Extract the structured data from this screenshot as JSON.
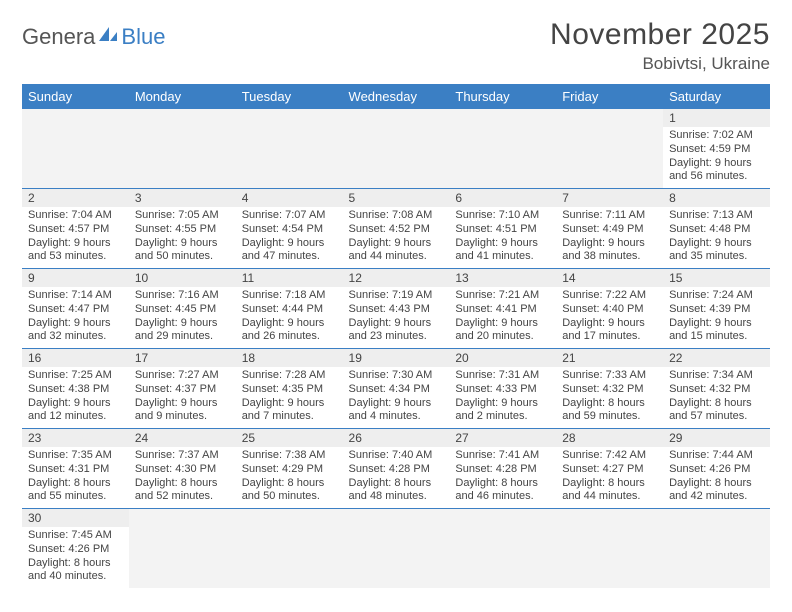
{
  "logo": {
    "part1": "Genera",
    "part2": "Blue"
  },
  "title": "November 2025",
  "location": "Bobivtsi, Ukraine",
  "colors": {
    "header_bg": "#3b7fc4",
    "header_text": "#ffffff",
    "daynum_bg": "#eeeeee",
    "row_border": "#3b7fc4",
    "body_text": "#444444"
  },
  "weekdays": [
    "Sunday",
    "Monday",
    "Tuesday",
    "Wednesday",
    "Thursday",
    "Friday",
    "Saturday"
  ],
  "weeks": [
    [
      null,
      null,
      null,
      null,
      null,
      null,
      {
        "n": "1",
        "sr": "Sunrise: 7:02 AM",
        "ss": "Sunset: 4:59 PM",
        "dl": "Daylight: 9 hours and 56 minutes."
      }
    ],
    [
      {
        "n": "2",
        "sr": "Sunrise: 7:04 AM",
        "ss": "Sunset: 4:57 PM",
        "dl": "Daylight: 9 hours and 53 minutes."
      },
      {
        "n": "3",
        "sr": "Sunrise: 7:05 AM",
        "ss": "Sunset: 4:55 PM",
        "dl": "Daylight: 9 hours and 50 minutes."
      },
      {
        "n": "4",
        "sr": "Sunrise: 7:07 AM",
        "ss": "Sunset: 4:54 PM",
        "dl": "Daylight: 9 hours and 47 minutes."
      },
      {
        "n": "5",
        "sr": "Sunrise: 7:08 AM",
        "ss": "Sunset: 4:52 PM",
        "dl": "Daylight: 9 hours and 44 minutes."
      },
      {
        "n": "6",
        "sr": "Sunrise: 7:10 AM",
        "ss": "Sunset: 4:51 PM",
        "dl": "Daylight: 9 hours and 41 minutes."
      },
      {
        "n": "7",
        "sr": "Sunrise: 7:11 AM",
        "ss": "Sunset: 4:49 PM",
        "dl": "Daylight: 9 hours and 38 minutes."
      },
      {
        "n": "8",
        "sr": "Sunrise: 7:13 AM",
        "ss": "Sunset: 4:48 PM",
        "dl": "Daylight: 9 hours and 35 minutes."
      }
    ],
    [
      {
        "n": "9",
        "sr": "Sunrise: 7:14 AM",
        "ss": "Sunset: 4:47 PM",
        "dl": "Daylight: 9 hours and 32 minutes."
      },
      {
        "n": "10",
        "sr": "Sunrise: 7:16 AM",
        "ss": "Sunset: 4:45 PM",
        "dl": "Daylight: 9 hours and 29 minutes."
      },
      {
        "n": "11",
        "sr": "Sunrise: 7:18 AM",
        "ss": "Sunset: 4:44 PM",
        "dl": "Daylight: 9 hours and 26 minutes."
      },
      {
        "n": "12",
        "sr": "Sunrise: 7:19 AM",
        "ss": "Sunset: 4:43 PM",
        "dl": "Daylight: 9 hours and 23 minutes."
      },
      {
        "n": "13",
        "sr": "Sunrise: 7:21 AM",
        "ss": "Sunset: 4:41 PM",
        "dl": "Daylight: 9 hours and 20 minutes."
      },
      {
        "n": "14",
        "sr": "Sunrise: 7:22 AM",
        "ss": "Sunset: 4:40 PM",
        "dl": "Daylight: 9 hours and 17 minutes."
      },
      {
        "n": "15",
        "sr": "Sunrise: 7:24 AM",
        "ss": "Sunset: 4:39 PM",
        "dl": "Daylight: 9 hours and 15 minutes."
      }
    ],
    [
      {
        "n": "16",
        "sr": "Sunrise: 7:25 AM",
        "ss": "Sunset: 4:38 PM",
        "dl": "Daylight: 9 hours and 12 minutes."
      },
      {
        "n": "17",
        "sr": "Sunrise: 7:27 AM",
        "ss": "Sunset: 4:37 PM",
        "dl": "Daylight: 9 hours and 9 minutes."
      },
      {
        "n": "18",
        "sr": "Sunrise: 7:28 AM",
        "ss": "Sunset: 4:35 PM",
        "dl": "Daylight: 9 hours and 7 minutes."
      },
      {
        "n": "19",
        "sr": "Sunrise: 7:30 AM",
        "ss": "Sunset: 4:34 PM",
        "dl": "Daylight: 9 hours and 4 minutes."
      },
      {
        "n": "20",
        "sr": "Sunrise: 7:31 AM",
        "ss": "Sunset: 4:33 PM",
        "dl": "Daylight: 9 hours and 2 minutes."
      },
      {
        "n": "21",
        "sr": "Sunrise: 7:33 AM",
        "ss": "Sunset: 4:32 PM",
        "dl": "Daylight: 8 hours and 59 minutes."
      },
      {
        "n": "22",
        "sr": "Sunrise: 7:34 AM",
        "ss": "Sunset: 4:32 PM",
        "dl": "Daylight: 8 hours and 57 minutes."
      }
    ],
    [
      {
        "n": "23",
        "sr": "Sunrise: 7:35 AM",
        "ss": "Sunset: 4:31 PM",
        "dl": "Daylight: 8 hours and 55 minutes."
      },
      {
        "n": "24",
        "sr": "Sunrise: 7:37 AM",
        "ss": "Sunset: 4:30 PM",
        "dl": "Daylight: 8 hours and 52 minutes."
      },
      {
        "n": "25",
        "sr": "Sunrise: 7:38 AM",
        "ss": "Sunset: 4:29 PM",
        "dl": "Daylight: 8 hours and 50 minutes."
      },
      {
        "n": "26",
        "sr": "Sunrise: 7:40 AM",
        "ss": "Sunset: 4:28 PM",
        "dl": "Daylight: 8 hours and 48 minutes."
      },
      {
        "n": "27",
        "sr": "Sunrise: 7:41 AM",
        "ss": "Sunset: 4:28 PM",
        "dl": "Daylight: 8 hours and 46 minutes."
      },
      {
        "n": "28",
        "sr": "Sunrise: 7:42 AM",
        "ss": "Sunset: 4:27 PM",
        "dl": "Daylight: 8 hours and 44 minutes."
      },
      {
        "n": "29",
        "sr": "Sunrise: 7:44 AM",
        "ss": "Sunset: 4:26 PM",
        "dl": "Daylight: 8 hours and 42 minutes."
      }
    ],
    [
      {
        "n": "30",
        "sr": "Sunrise: 7:45 AM",
        "ss": "Sunset: 4:26 PM",
        "dl": "Daylight: 8 hours and 40 minutes."
      },
      null,
      null,
      null,
      null,
      null,
      null
    ]
  ]
}
